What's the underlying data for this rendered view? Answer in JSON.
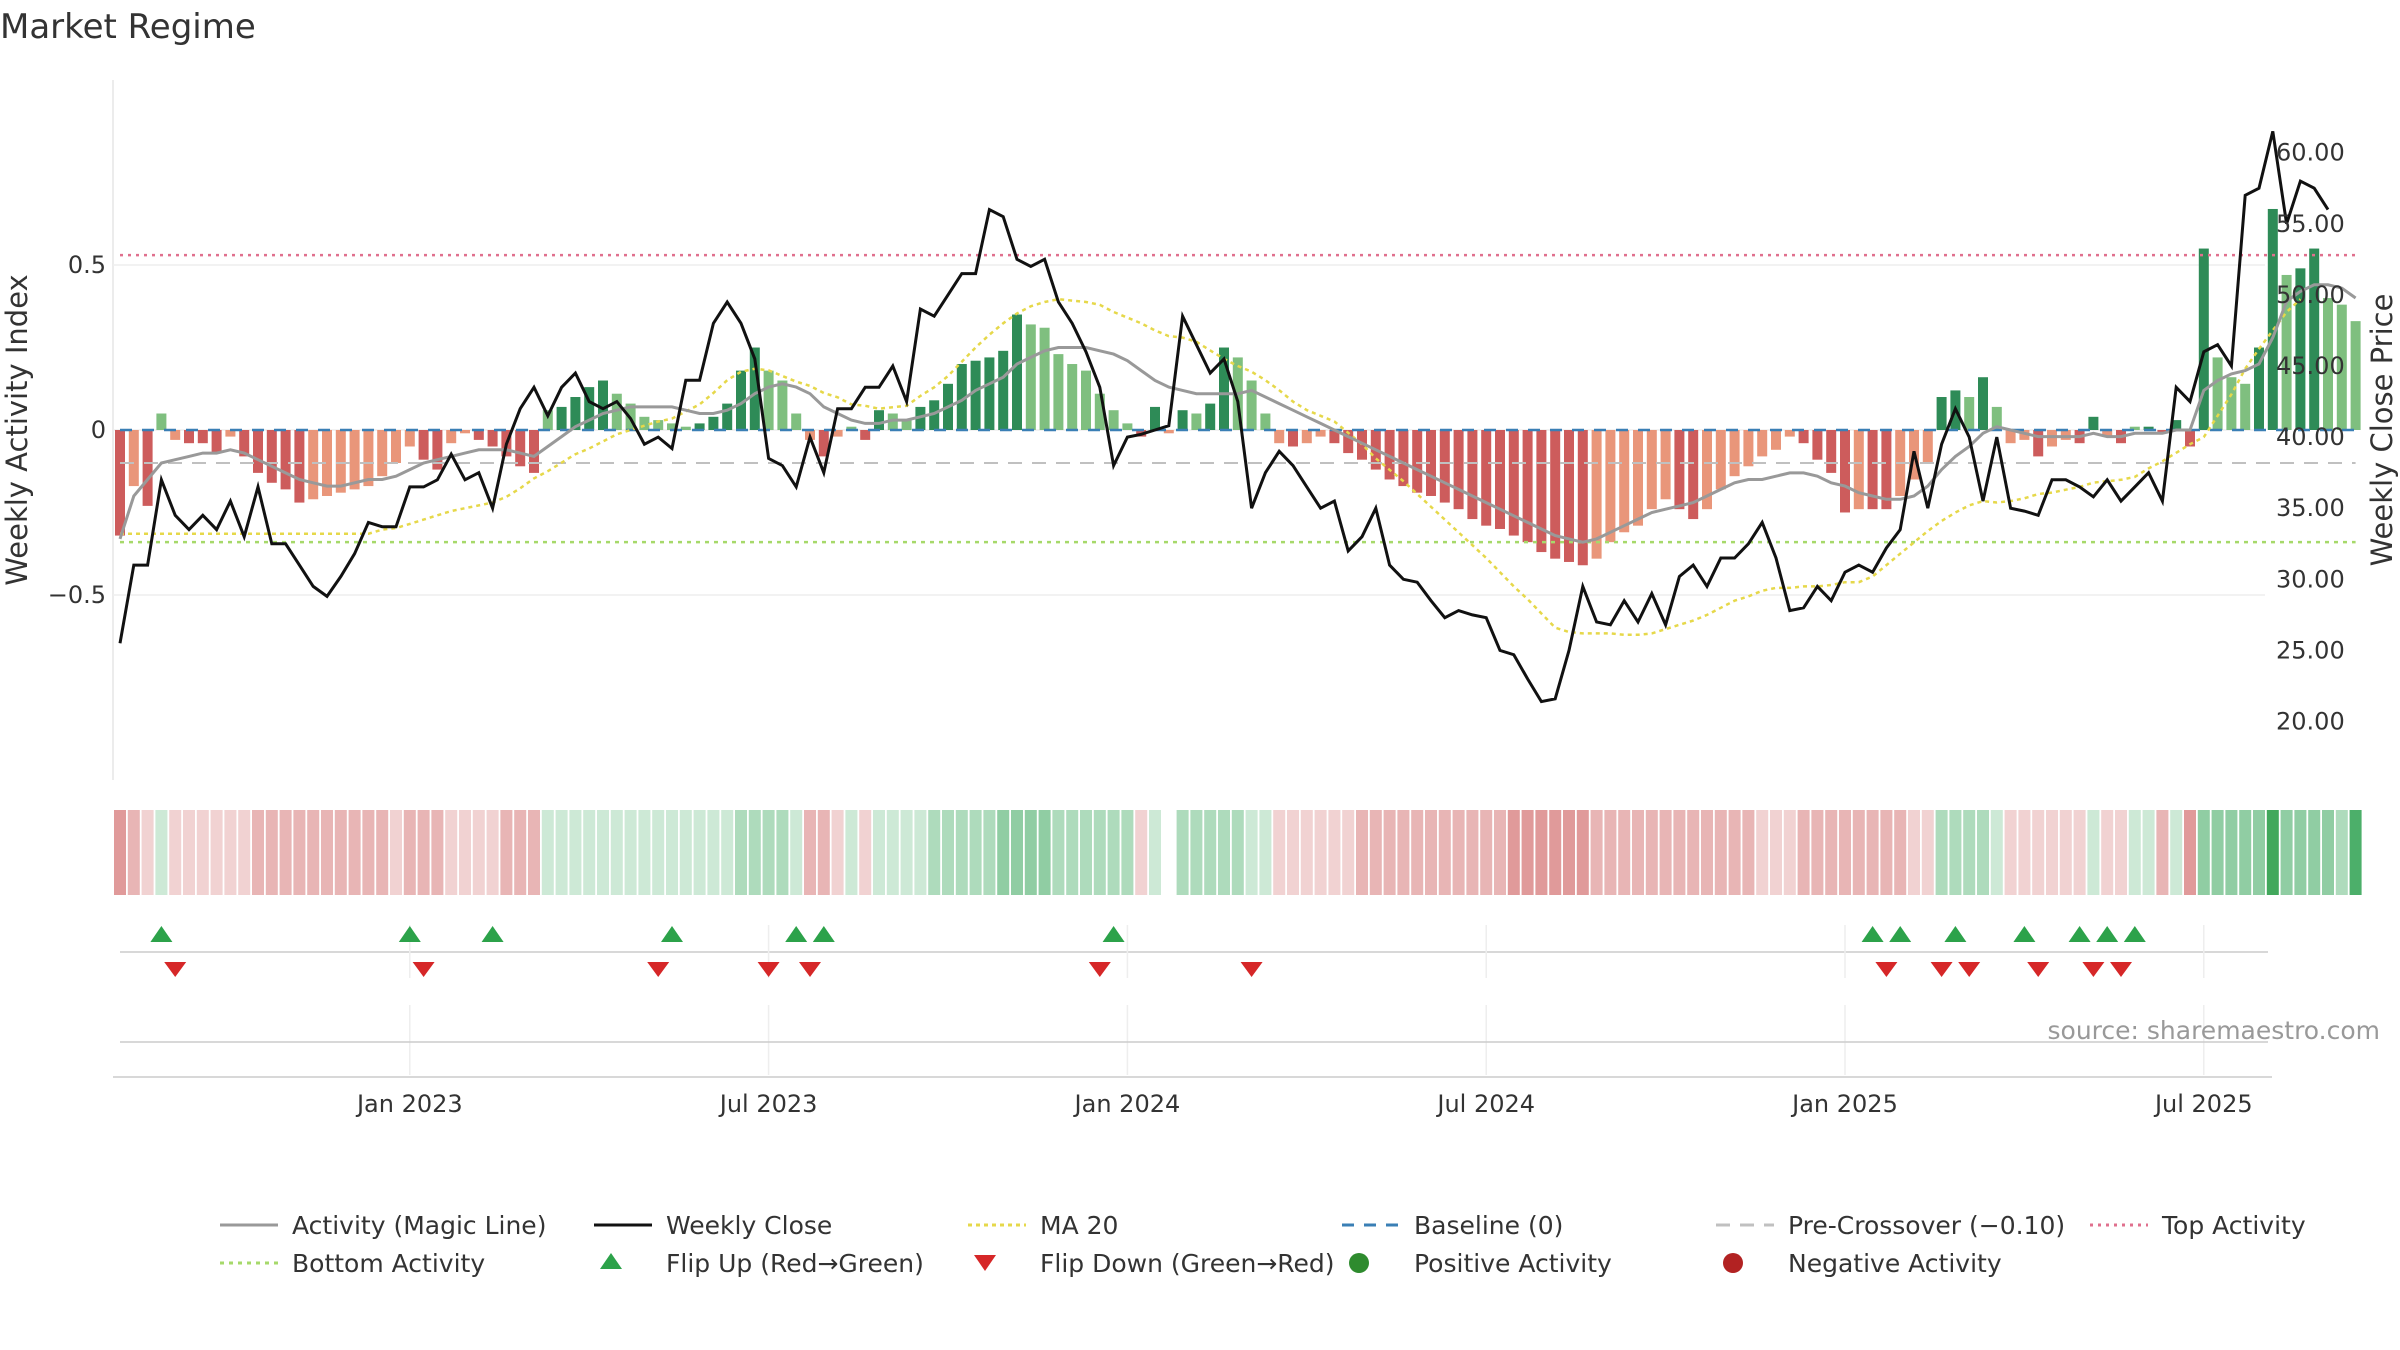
{
  "chart_data": {
    "type": "bar",
    "title": "Market Regime",
    "ylabel": "Weekly Activity Index",
    "y2label": "Weekly Close Price",
    "source": "source: sharemaestro.com",
    "ylim": [
      -0.97,
      0.97
    ],
    "y2lim": [
      18,
      63
    ],
    "y_ticks": [
      0.5,
      0,
      -0.5
    ],
    "y_tick_labels": [
      "0.5",
      "0",
      "−0.5"
    ],
    "y2_ticks": [
      60,
      55,
      50,
      45,
      40,
      35,
      30,
      25,
      20
    ],
    "y2_tick_labels": [
      "60.00",
      "55.00",
      "50.00",
      "45.00",
      "40.00",
      "35.00",
      "30.00",
      "25.00",
      "20.00"
    ],
    "x_ticks": [
      21,
      47,
      73,
      99,
      125,
      151
    ],
    "x_tick_labels": [
      "Jan 2023",
      "Jul 2023",
      "Jan 2024",
      "Jul 2024",
      "Jan 2025",
      "Jul 2025"
    ],
    "colors": {
      "pos_strong": "#2e8b57",
      "pos_weak": "#7fbf7f",
      "neg_strong": "#cd5c5c",
      "neg_weak": "#e9967a",
      "magic": "#999999",
      "close": "#111111",
      "ma20": "#e6d84a",
      "baseline": "#3a7fb5",
      "precross": "#c0c0c0",
      "top": "#e0708e",
      "bottom": "#a6d96a",
      "flip_up": "#2ca24a",
      "flip_down": "#d62728",
      "pos_dot": "#2e8b2e",
      "neg_dot": "#b22222"
    },
    "levels": {
      "baseline": 0,
      "pre_crossover": -0.1,
      "top_activity": 0.53,
      "bottom_activity": -0.34
    },
    "activity": [
      -0.32,
      -0.17,
      -0.23,
      0.05,
      -0.03,
      -0.04,
      -0.04,
      -0.07,
      -0.02,
      -0.08,
      -0.13,
      -0.16,
      -0.18,
      -0.22,
      -0.21,
      -0.2,
      -0.19,
      -0.18,
      -0.17,
      -0.14,
      -0.1,
      -0.05,
      -0.09,
      -0.12,
      -0.04,
      -0.01,
      -0.03,
      -0.05,
      -0.08,
      -0.11,
      -0.13,
      0.06,
      0.07,
      0.1,
      0.13,
      0.15,
      0.11,
      0.08,
      0.04,
      0.03,
      0.02,
      0.01,
      0.02,
      0.04,
      0.08,
      0.18,
      0.25,
      0.18,
      0.15,
      0.05,
      -0.03,
      -0.08,
      -0.02,
      0.01,
      -0.03,
      0.06,
      0.05,
      0.03,
      0.07,
      0.09,
      0.14,
      0.2,
      0.21,
      0.22,
      0.24,
      0.35,
      0.32,
      0.31,
      0.23,
      0.2,
      0.18,
      0.11,
      0.06,
      0.02,
      -0.02,
      0.07,
      -0.01,
      0.06,
      0.05,
      0.08,
      0.25,
      0.22,
      0.15,
      0.05,
      -0.04,
      -0.05,
      -0.04,
      -0.02,
      -0.04,
      -0.07,
      -0.09,
      -0.12,
      -0.15,
      -0.17,
      -0.19,
      -0.2,
      -0.22,
      -0.24,
      -0.27,
      -0.29,
      -0.3,
      -0.32,
      -0.34,
      -0.37,
      -0.39,
      -0.4,
      -0.41,
      -0.39,
      -0.34,
      -0.31,
      -0.29,
      -0.24,
      -0.21,
      -0.24,
      -0.27,
      -0.24,
      -0.18,
      -0.14,
      -0.11,
      -0.08,
      -0.06,
      -0.02,
      -0.04,
      -0.09,
      -0.13,
      -0.25,
      -0.24,
      -0.24,
      -0.24,
      -0.2,
      -0.15,
      -0.1,
      0.1,
      0.12,
      0.1,
      0.16,
      0.07,
      -0.04,
      -0.03,
      -0.08,
      -0.05,
      -0.03,
      -0.04,
      0.04,
      -0.02,
      -0.04,
      0.01,
      0.01,
      -0.01,
      0.03,
      -0.05,
      0.55,
      0.22,
      0.16,
      0.14,
      0.25,
      0.67,
      0.47,
      0.49,
      0.55,
      0.4,
      0.38,
      0.33
    ],
    "magic_line": [
      -0.33,
      -0.2,
      -0.15,
      -0.1,
      -0.09,
      -0.08,
      -0.07,
      -0.07,
      -0.06,
      -0.07,
      -0.09,
      -0.11,
      -0.13,
      -0.15,
      -0.16,
      -0.17,
      -0.17,
      -0.16,
      -0.15,
      -0.15,
      -0.14,
      -0.12,
      -0.1,
      -0.09,
      -0.08,
      -0.07,
      -0.06,
      -0.06,
      -0.06,
      -0.07,
      -0.08,
      -0.05,
      -0.02,
      0.01,
      0.03,
      0.05,
      0.06,
      0.07,
      0.07,
      0.07,
      0.07,
      0.06,
      0.05,
      0.05,
      0.06,
      0.08,
      0.11,
      0.13,
      0.14,
      0.13,
      0.11,
      0.07,
      0.05,
      0.03,
      0.02,
      0.02,
      0.03,
      0.03,
      0.04,
      0.05,
      0.07,
      0.09,
      0.12,
      0.14,
      0.16,
      0.2,
      0.22,
      0.24,
      0.25,
      0.25,
      0.25,
      0.24,
      0.23,
      0.21,
      0.18,
      0.15,
      0.13,
      0.12,
      0.11,
      0.11,
      0.11,
      0.11,
      0.12,
      0.1,
      0.08,
      0.06,
      0.04,
      0.02,
      0.0,
      -0.02,
      -0.04,
      -0.06,
      -0.08,
      -0.1,
      -0.12,
      -0.14,
      -0.16,
      -0.18,
      -0.2,
      -0.22,
      -0.24,
      -0.26,
      -0.28,
      -0.3,
      -0.32,
      -0.33,
      -0.34,
      -0.33,
      -0.31,
      -0.29,
      -0.27,
      -0.25,
      -0.24,
      -0.23,
      -0.22,
      -0.2,
      -0.18,
      -0.16,
      -0.15,
      -0.15,
      -0.14,
      -0.13,
      -0.13,
      -0.14,
      -0.16,
      -0.17,
      -0.19,
      -0.2,
      -0.21,
      -0.21,
      -0.2,
      -0.17,
      -0.12,
      -0.08,
      -0.05,
      -0.01,
      0.01,
      0.0,
      -0.01,
      -0.02,
      -0.02,
      -0.02,
      -0.02,
      -0.01,
      -0.02,
      -0.02,
      -0.01,
      -0.01,
      -0.01,
      0.0,
      0.0,
      0.12,
      0.15,
      0.17,
      0.18,
      0.2,
      0.28,
      0.39,
      0.42,
      0.44,
      0.44,
      0.43,
      0.4
    ],
    "weekly_close": [
      25.5,
      31.0,
      31.0,
      37.0,
      34.5,
      33.5,
      34.5,
      33.5,
      35.5,
      33.0,
      36.5,
      32.5,
      32.5,
      31.0,
      29.5,
      28.8,
      30.2,
      31.8,
      34.0,
      33.7,
      33.7,
      36.5,
      36.5,
      37.0,
      38.8,
      37.0,
      37.5,
      35.0,
      39.5,
      42.0,
      43.5,
      41.5,
      43.5,
      44.5,
      42.5,
      42.0,
      42.5,
      41.3,
      39.5,
      40.0,
      39.2,
      44.0,
      44.0,
      48.0,
      49.5,
      48.0,
      45.5,
      38.5,
      38.0,
      36.5,
      40.0,
      37.5,
      42.0,
      42.0,
      43.5,
      43.5,
      45.0,
      42.5,
      49.0,
      48.5,
      50.0,
      51.5,
      51.5,
      56.0,
      55.5,
      52.5,
      52.0,
      52.5,
      49.5,
      48.0,
      46.0,
      43.5,
      38.0,
      40.0,
      40.2,
      40.5,
      40.8,
      48.5,
      46.5,
      44.5,
      45.5,
      42.5,
      35.0,
      37.5,
      39.0,
      38.0,
      36.5,
      35.0,
      35.5,
      32.0,
      33.0,
      35.0,
      31.0,
      30.0,
      29.8,
      28.5,
      27.3,
      27.8,
      27.5,
      27.3,
      25.0,
      24.7,
      23.0,
      21.4,
      21.6,
      25.0,
      29.5,
      27.0,
      26.8,
      28.5,
      27.0,
      29.0,
      26.8,
      30.2,
      31.0,
      29.5,
      31.5,
      31.5,
      32.5,
      34.0,
      31.5,
      27.8,
      28.0,
      29.5,
      28.5,
      30.5,
      31.0,
      30.5,
      32.2,
      33.5,
      39.0,
      35.0,
      39.5,
      42.0,
      40.0,
      35.5,
      40.0,
      35.0,
      34.8,
      34.5,
      37.0,
      37.0,
      36.5,
      35.8,
      37.0,
      35.5,
      36.5,
      37.5,
      35.5,
      43.5,
      42.5,
      46.0,
      46.5,
      45.0,
      57.0,
      57.5,
      61.5,
      55.0,
      58.0,
      57.5,
      56.0
    ],
    "ma20": [
      33.2,
      33.2,
      33.2,
      33.2,
      33.2,
      33.2,
      33.2,
      33.2,
      33.2,
      33.2,
      33.2,
      33.2,
      33.2,
      33.2,
      33.2,
      33.2,
      33.2,
      33.2,
      33.2,
      33.5,
      33.6,
      33.9,
      34.2,
      34.5,
      34.8,
      35.0,
      35.2,
      35.4,
      35.8,
      36.4,
      37.1,
      37.6,
      38.2,
      38.8,
      39.2,
      39.7,
      40.2,
      40.5,
      40.8,
      41.1,
      41.3,
      41.8,
      42.3,
      43.1,
      44.0,
      44.6,
      44.8,
      44.7,
      44.3,
      43.9,
      43.6,
      43.1,
      42.8,
      42.3,
      42.2,
      42.0,
      42.1,
      42.2,
      42.9,
      43.5,
      44.3,
      45.3,
      46.3,
      47.2,
      48.0,
      48.7,
      49.2,
      49.5,
      49.7,
      49.6,
      49.5,
      49.3,
      48.8,
      48.4,
      48.0,
      47.5,
      47.1,
      47.0,
      46.7,
      46.1,
      45.5,
      45.0,
      44.6,
      44.0,
      43.3,
      42.5,
      41.9,
      41.5,
      41.1,
      40.3,
      39.5,
      38.5,
      37.7,
      36.9,
      36.0,
      35.1,
      34.2,
      33.3,
      32.4,
      31.5,
      30.5,
      29.5,
      28.6,
      27.6,
      26.6,
      26.3,
      26.2,
      26.2,
      26.2,
      26.1,
      26.1,
      26.2,
      26.5,
      26.8,
      27.1,
      27.5,
      28.0,
      28.5,
      28.8,
      29.2,
      29.4,
      29.4,
      29.5,
      29.5,
      29.6,
      29.8,
      29.8,
      30.2,
      31.0,
      31.8,
      32.6,
      33.4,
      34.1,
      34.7,
      35.2,
      35.5,
      35.4,
      35.5,
      35.7,
      36.0,
      36.1,
      36.3,
      36.5,
      36.8,
      36.9,
      37.0,
      37.2,
      37.8,
      38.3,
      38.9,
      39.5,
      40.0,
      41.5,
      43.0,
      44.8,
      46.2,
      47.5,
      48.8,
      49.7
    ],
    "strength": [
      3,
      2,
      1,
      1,
      1,
      1,
      1,
      1,
      1,
      1,
      2,
      2,
      2,
      2,
      2,
      2,
      2,
      2,
      2,
      2,
      1,
      2,
      2,
      2,
      1,
      1,
      1,
      1,
      2,
      2,
      2,
      1,
      1,
      1,
      1,
      1,
      1,
      1,
      1,
      1,
      1,
      1,
      1,
      1,
      1,
      2,
      2,
      2,
      2,
      1,
      2,
      2,
      1,
      1,
      1,
      1,
      1,
      1,
      1,
      2,
      2,
      2,
      2,
      2,
      3,
      3,
      3,
      3,
      2,
      2,
      2,
      2,
      2,
      2,
      1,
      1,
      0,
      2,
      2,
      2,
      2,
      2,
      1,
      1,
      1,
      1,
      1,
      1,
      1,
      1,
      2,
      2,
      2,
      2,
      2,
      2,
      2,
      2,
      2,
      2,
      2,
      3,
      3,
      3,
      3,
      3,
      3,
      2,
      2,
      2,
      2,
      2,
      2,
      2,
      2,
      2,
      2,
      2,
      2,
      1,
      1,
      1,
      2,
      2,
      2,
      2,
      2,
      2,
      2,
      2,
      1,
      1,
      2,
      2,
      2,
      2,
      1,
      1,
      1,
      1,
      1,
      1,
      1,
      1,
      1,
      1,
      1,
      1,
      2,
      1,
      3,
      3,
      3,
      3,
      3,
      3,
      4,
      3,
      3,
      3,
      3,
      2
    ],
    "flip_up_idx": [
      3,
      21,
      27,
      40,
      49,
      51,
      72,
      127,
      129,
      133,
      138,
      142,
      144,
      146
    ],
    "flip_down_idx": [
      4,
      22,
      39,
      47,
      50,
      71,
      82,
      128,
      132,
      134,
      139,
      143,
      145
    ],
    "legend": [
      {
        "key": "magic",
        "label": "Activity (Magic Line)"
      },
      {
        "key": "close",
        "label": "Weekly Close"
      },
      {
        "key": "ma20",
        "label": "MA 20"
      },
      {
        "key": "baseline",
        "label": "Baseline (0)"
      },
      {
        "key": "precross",
        "label": "Pre-Crossover (−0.10)"
      },
      {
        "key": "top",
        "label": "Top Activity"
      },
      {
        "key": "bottom",
        "label": "Bottom Activity"
      },
      {
        "key": "flip_up",
        "label": "Flip Up (Red→Green)"
      },
      {
        "key": "flip_down",
        "label": "Flip Down (Green→Red)"
      },
      {
        "key": "pos_dot",
        "label": "Positive Activity"
      },
      {
        "key": "neg_dot",
        "label": "Negative Activity"
      }
    ]
  }
}
